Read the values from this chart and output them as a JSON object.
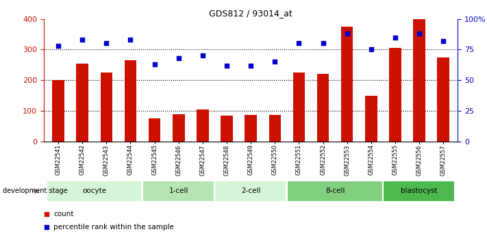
{
  "title": "GDS812 / 93014_at",
  "samples": [
    "GSM22541",
    "GSM22542",
    "GSM22543",
    "GSM22544",
    "GSM22545",
    "GSM22546",
    "GSM22547",
    "GSM22548",
    "GSM22549",
    "GSM22550",
    "GSM22551",
    "GSM22552",
    "GSM22553",
    "GSM22554",
    "GSM22555",
    "GSM22556",
    "GSM22557"
  ],
  "counts": [
    200,
    255,
    225,
    265,
    75,
    90,
    105,
    85,
    88,
    88,
    225,
    220,
    375,
    150,
    305,
    398,
    275
  ],
  "percentile_ranks": [
    78,
    83,
    80,
    83,
    63,
    68,
    70,
    62,
    62,
    65,
    80,
    80,
    88,
    75,
    85,
    88,
    82
  ],
  "stages": [
    {
      "label": "oocyte",
      "start": 0,
      "end": 3,
      "color": "#d6f5d6"
    },
    {
      "label": "1-cell",
      "start": 4,
      "end": 6,
      "color": "#b3e6b3"
    },
    {
      "label": "2-cell",
      "start": 7,
      "end": 9,
      "color": "#d6f5d6"
    },
    {
      "label": "8-cell",
      "start": 10,
      "end": 13,
      "color": "#80d080"
    },
    {
      "label": "blastocyst",
      "start": 14,
      "end": 16,
      "color": "#4db84d"
    }
  ],
  "bar_color": "#cc1100",
  "scatter_color": "#0000cc",
  "ylim_left": [
    0,
    400
  ],
  "ylim_right": [
    0,
    100
  ],
  "yticks_left": [
    0,
    100,
    200,
    300,
    400
  ],
  "yticks_right": [
    0,
    25,
    50,
    75,
    100
  ],
  "ytick_labels_right": [
    "0",
    "25",
    "50",
    "75",
    "100%"
  ],
  "grid_vals": [
    100,
    200,
    300
  ],
  "bg_color": "#ffffff",
  "tick_color_left": "#cc1100",
  "tick_color_right": "#0000cc",
  "bar_width": 0.5,
  "dev_stage_label": "development stage"
}
